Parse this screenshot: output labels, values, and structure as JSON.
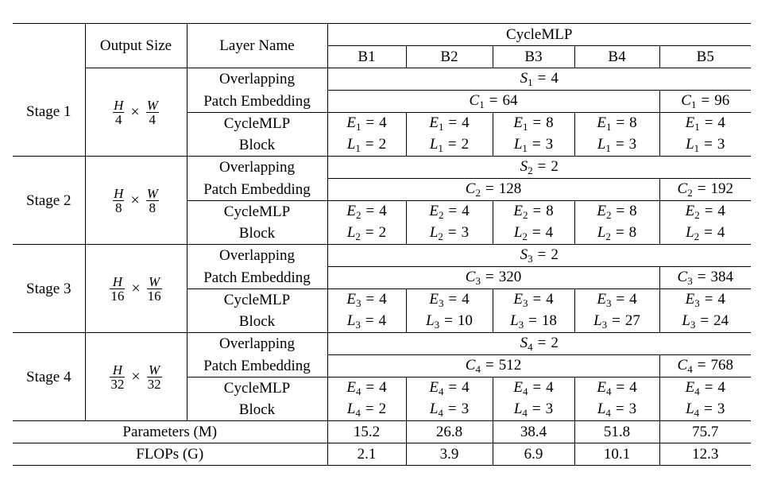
{
  "header": {
    "output_size": "Output Size",
    "layer_name": "Layer Name",
    "model": "CycleMLP",
    "variants": [
      "B1",
      "B2",
      "B3",
      "B4",
      "B5"
    ]
  },
  "stages": [
    {
      "label": "Stage 1",
      "h_num": "H",
      "h_den": "4",
      "w_num": "W",
      "w_den": "4",
      "patch_layer": [
        "Overlapping",
        "Patch Embedding"
      ],
      "s_sym": "S",
      "s_idx": "1",
      "s_val": "4",
      "c_sym": "C",
      "c_idx": "1",
      "c_val_b1_b4": "64",
      "c_val_b5": "96",
      "block_layer": [
        "CycleMLP",
        "Block"
      ],
      "e_sym": "E",
      "l_sym": "L",
      "idx": "1",
      "e_vals": [
        "4",
        "4",
        "8",
        "8",
        "4"
      ],
      "l_vals": [
        "2",
        "2",
        "3",
        "3",
        "3"
      ]
    },
    {
      "label": "Stage 2",
      "h_num": "H",
      "h_den": "8",
      "w_num": "W",
      "w_den": "8",
      "patch_layer": [
        "Overlapping",
        "Patch Embedding"
      ],
      "s_sym": "S",
      "s_idx": "2",
      "s_val": "2",
      "c_sym": "C",
      "c_idx": "2",
      "c_val_b1_b4": "128",
      "c_val_b5": "192",
      "block_layer": [
        "CycleMLP",
        "Block"
      ],
      "e_sym": "E",
      "l_sym": "L",
      "idx": "2",
      "e_vals": [
        "4",
        "4",
        "8",
        "8",
        "4"
      ],
      "l_vals": [
        "2",
        "3",
        "4",
        "8",
        "4"
      ]
    },
    {
      "label": "Stage 3",
      "h_num": "H",
      "h_den": "16",
      "w_num": "W",
      "w_den": "16",
      "patch_layer": [
        "Overlapping",
        "Patch Embedding"
      ],
      "s_sym": "S",
      "s_idx": "3",
      "s_val": "2",
      "c_sym": "C",
      "c_idx": "3",
      "c_val_b1_b4": "320",
      "c_val_b5": "384",
      "block_layer": [
        "CycleMLP",
        "Block"
      ],
      "e_sym": "E",
      "l_sym": "L",
      "idx": "3",
      "e_vals": [
        "4",
        "4",
        "4",
        "4",
        "4"
      ],
      "l_vals": [
        "4",
        "10",
        "18",
        "27",
        "24"
      ]
    },
    {
      "label": "Stage 4",
      "h_num": "H",
      "h_den": "32",
      "w_num": "W",
      "w_den": "32",
      "patch_layer": [
        "Overlapping",
        "Patch Embedding"
      ],
      "s_sym": "S",
      "s_idx": "4",
      "s_val": "2",
      "c_sym": "C",
      "c_idx": "4",
      "c_val_b1_b4": "512",
      "c_val_b5": "768",
      "block_layer": [
        "CycleMLP",
        "Block"
      ],
      "e_sym": "E",
      "l_sym": "L",
      "idx": "4",
      "e_vals": [
        "4",
        "4",
        "4",
        "4",
        "4"
      ],
      "l_vals": [
        "2",
        "3",
        "3",
        "3",
        "3"
      ]
    }
  ],
  "summary": [
    {
      "label": "Parameters (M)",
      "values": [
        "15.2",
        "26.8",
        "38.4",
        "51.8",
        "75.7"
      ]
    },
    {
      "label": "FLOPs (G)",
      "values": [
        "2.1",
        "3.9",
        "6.9",
        "10.1",
        "12.3"
      ]
    }
  ],
  "symbols": {
    "times": "×",
    "equals": "="
  }
}
